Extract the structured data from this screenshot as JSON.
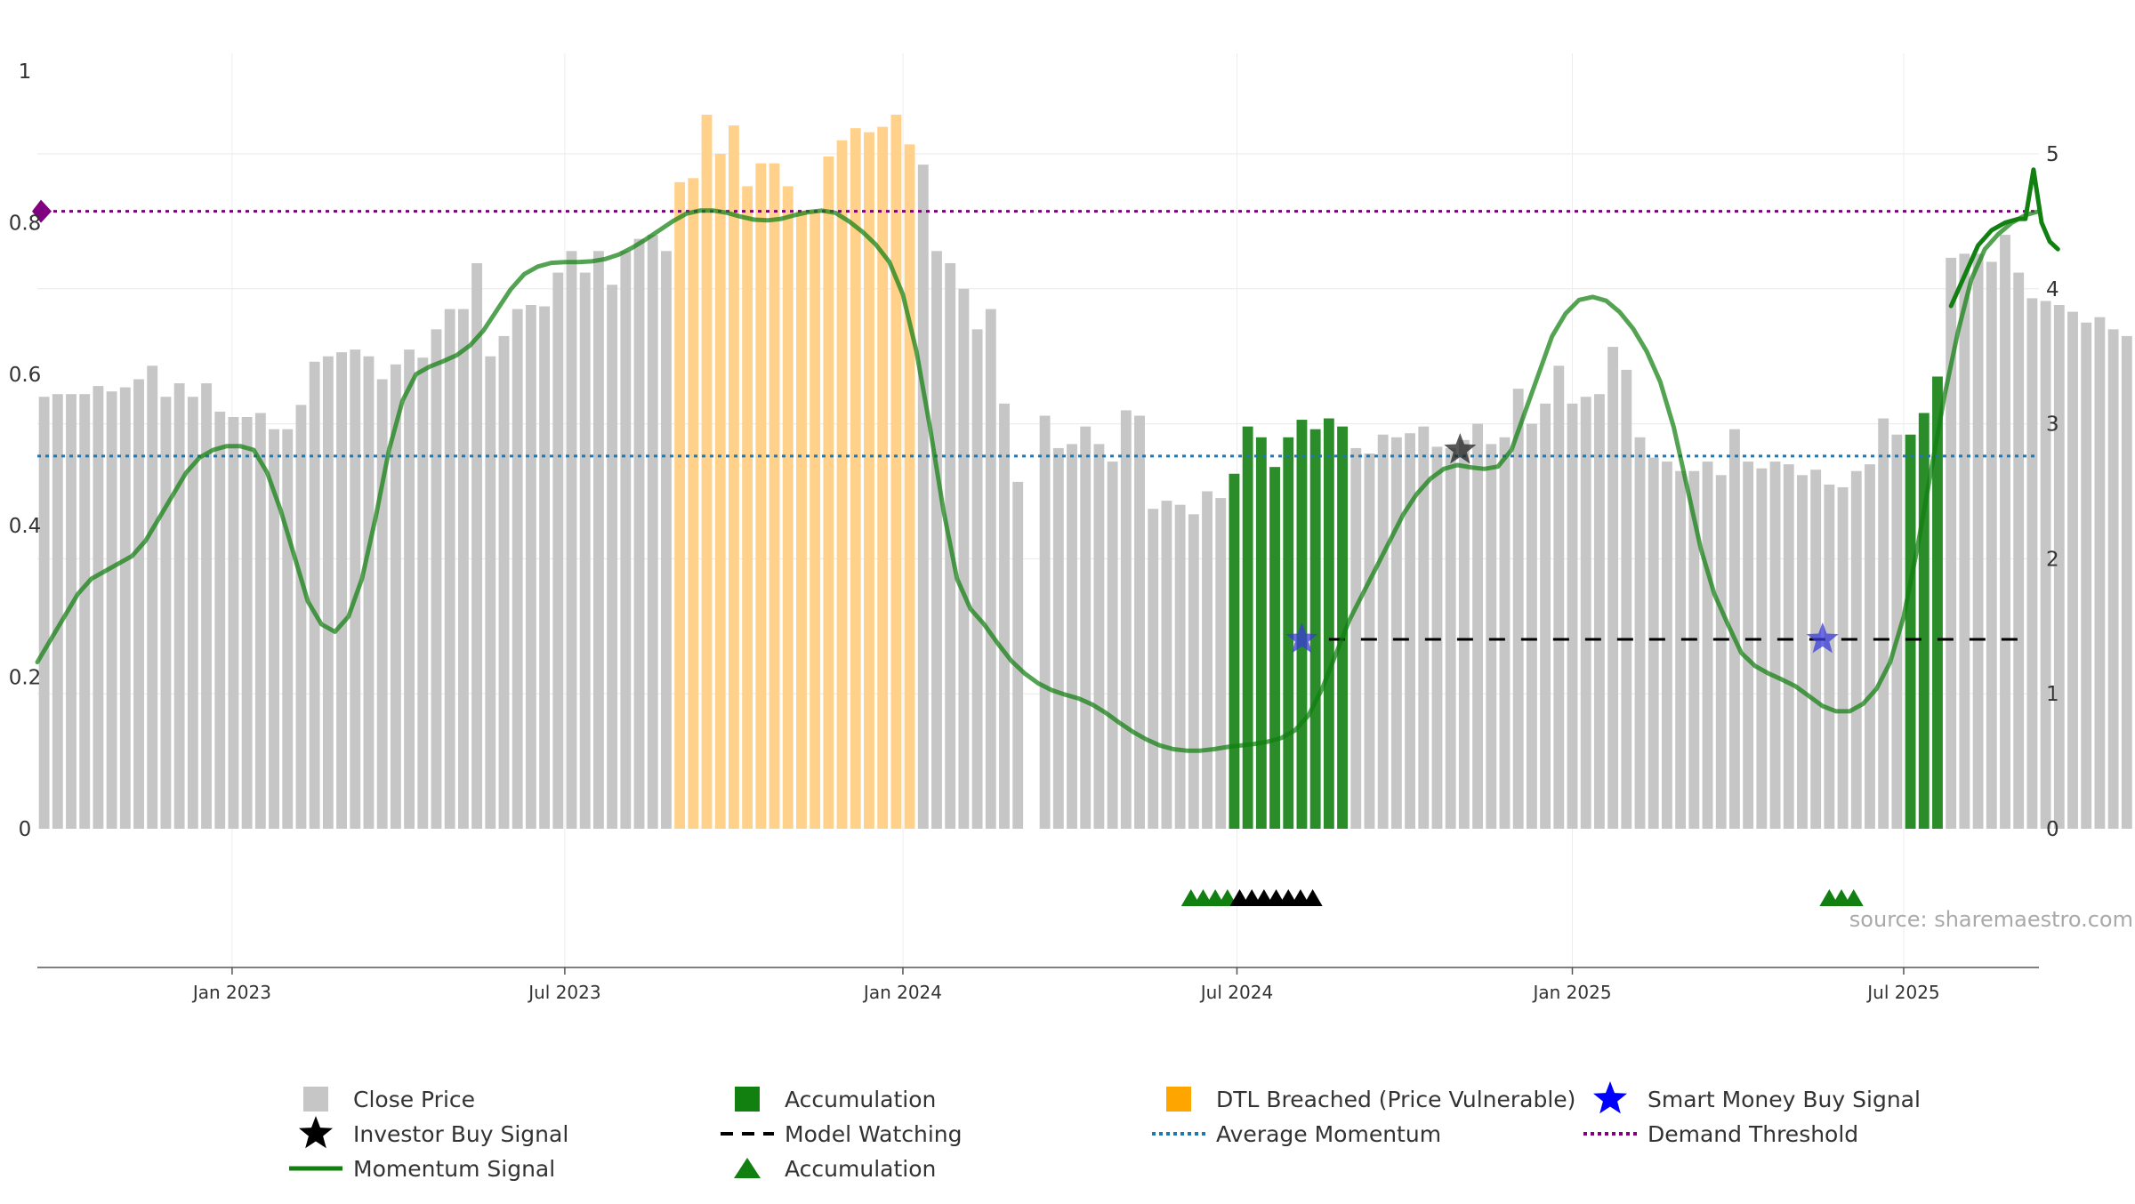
{
  "chart_data": {
    "type": "bar",
    "left_axis": {
      "ticks": [
        0,
        0.2,
        0.4,
        0.6,
        0.8,
        1
      ],
      "tick_labels": [
        "0",
        "0.2",
        "0.4",
        "0.6",
        "0.8",
        "1"
      ],
      "range": [
        0,
        1
      ]
    },
    "right_axis": {
      "ticks": [
        0,
        1,
        2,
        3,
        4,
        5
      ],
      "tick_labels": [
        "0",
        "1",
        "2",
        "3",
        "4",
        "5"
      ],
      "range": [
        0,
        5.1
      ]
    },
    "x_axis": {
      "range": [
        0,
        148
      ],
      "ticks": [
        {
          "x": 14.4,
          "label": "Jan 2023"
        },
        {
          "x": 39.0,
          "label": "Jul 2023"
        },
        {
          "x": 64.0,
          "label": "Jan 2024"
        },
        {
          "x": 88.7,
          "label": "Jul 2024"
        },
        {
          "x": 113.5,
          "label": "Jan 2025"
        },
        {
          "x": 138.0,
          "label": "Jul 2025"
        }
      ]
    },
    "bars": {
      "values": [
        3.2,
        3.22,
        3.22,
        3.22,
        3.28,
        3.24,
        3.27,
        3.33,
        3.43,
        3.2,
        3.3,
        3.2,
        3.3,
        3.09,
        3.05,
        3.05,
        3.08,
        2.96,
        2.96,
        3.14,
        3.46,
        3.5,
        3.53,
        3.55,
        3.5,
        3.33,
        3.44,
        3.55,
        3.49,
        3.7,
        3.85,
        3.85,
        4.19,
        3.5,
        3.65,
        3.85,
        3.88,
        3.87,
        4.12,
        4.28,
        4.12,
        4.28,
        4.03,
        4.28,
        4.37,
        4.4,
        4.28,
        4.79,
        4.82,
        5.29,
        5.0,
        5.21,
        4.76,
        4.93,
        4.93,
        4.76,
        4.58,
        4.58,
        4.98,
        5.1,
        5.19,
        5.16,
        5.2,
        5.29,
        5.07,
        4.92,
        4.28,
        4.19,
        4.0,
        3.7,
        3.85,
        3.15,
        2.57,
        0,
        3.06,
        2.82,
        2.85,
        2.98,
        2.85,
        2.72,
        3.1,
        3.06,
        2.37,
        2.43,
        2.4,
        2.33,
        2.5,
        2.45,
        2.63,
        2.98,
        2.9,
        2.68,
        2.9,
        3.03,
        2.96,
        3.04,
        2.98,
        2.82,
        2.78,
        2.92,
        2.9,
        2.93,
        2.98,
        2.83,
        2.82,
        2.88,
        3.0,
        2.85,
        2.9,
        3.26,
        3.0,
        3.15,
        3.43,
        3.15,
        3.2,
        3.22,
        3.57,
        3.4,
        2.9,
        2.75,
        2.72,
        2.65,
        2.65,
        2.72,
        2.62,
        2.96,
        2.72,
        2.67,
        2.72,
        2.7,
        2.62,
        2.66,
        2.55,
        2.53,
        2.65,
        2.7,
        3.04,
        2.92,
        2.92,
        3.08,
        3.35,
        4.23,
        4.26,
        4.26,
        4.2,
        4.4,
        4.12,
        3.93,
        3.91,
        3.88,
        3.83,
        3.75,
        3.79,
        3.7,
        3.65
      ],
      "colors_by_state": {
        "close": "#c6c6c6",
        "accumulation": "#2a8d2a",
        "dtl": "#ffd18a"
      },
      "dtl_ranges": [
        [
          47,
          65
        ]
      ],
      "accumulation_ranges": [
        [
          88,
          97
        ],
        [
          138,
          141
        ]
      ]
    },
    "momentum_signal": {
      "axis": "left",
      "color": "#118011",
      "points": [
        [
          0,
          0.22
        ],
        [
          1,
          0.25
        ],
        [
          2,
          0.28
        ],
        [
          3,
          0.31
        ],
        [
          4,
          0.33
        ],
        [
          5,
          0.34
        ],
        [
          6,
          0.35
        ],
        [
          7,
          0.36
        ],
        [
          8,
          0.38
        ],
        [
          9,
          0.41
        ],
        [
          10,
          0.44
        ],
        [
          11,
          0.47
        ],
        [
          12,
          0.49
        ],
        [
          13,
          0.5
        ],
        [
          14,
          0.505
        ],
        [
          15,
          0.505
        ],
        [
          16,
          0.5
        ],
        [
          17,
          0.47
        ],
        [
          18,
          0.42
        ],
        [
          19,
          0.36
        ],
        [
          20,
          0.3
        ],
        [
          21,
          0.27
        ],
        [
          22,
          0.26
        ],
        [
          23,
          0.28
        ],
        [
          24,
          0.33
        ],
        [
          25,
          0.41
        ],
        [
          26,
          0.5
        ],
        [
          27,
          0.565
        ],
        [
          28,
          0.6
        ],
        [
          29,
          0.61
        ],
        [
          30,
          0.617
        ],
        [
          31,
          0.625
        ],
        [
          32,
          0.638
        ],
        [
          33,
          0.658
        ],
        [
          34,
          0.685
        ],
        [
          35,
          0.712
        ],
        [
          36,
          0.732
        ],
        [
          37,
          0.742
        ],
        [
          38,
          0.747
        ],
        [
          39,
          0.748
        ],
        [
          40,
          0.748
        ],
        [
          41,
          0.749
        ],
        [
          42,
          0.752
        ],
        [
          43,
          0.758
        ],
        [
          44,
          0.767
        ],
        [
          45,
          0.778
        ],
        [
          46,
          0.79
        ],
        [
          47,
          0.802
        ],
        [
          48,
          0.812
        ],
        [
          49,
          0.816
        ],
        [
          50,
          0.816
        ],
        [
          51,
          0.813
        ],
        [
          52,
          0.808
        ],
        [
          53,
          0.804
        ],
        [
          54,
          0.803
        ],
        [
          55,
          0.805
        ],
        [
          56,
          0.81
        ],
        [
          57,
          0.814
        ],
        [
          58,
          0.816
        ],
        [
          59,
          0.813
        ],
        [
          60,
          0.802
        ],
        [
          61,
          0.788
        ],
        [
          62,
          0.771
        ],
        [
          63,
          0.748
        ],
        [
          64,
          0.705
        ],
        [
          65,
          0.63
        ],
        [
          66,
          0.53
        ],
        [
          67,
          0.42
        ],
        [
          68,
          0.33
        ],
        [
          69,
          0.29
        ],
        [
          70,
          0.27
        ],
        [
          71,
          0.245
        ],
        [
          72,
          0.222
        ],
        [
          73,
          0.205
        ],
        [
          74,
          0.192
        ],
        [
          75,
          0.183
        ],
        [
          76,
          0.177
        ],
        [
          77,
          0.172
        ],
        [
          78,
          0.164
        ],
        [
          79,
          0.153
        ],
        [
          80,
          0.14
        ],
        [
          81,
          0.128
        ],
        [
          82,
          0.118
        ],
        [
          83,
          0.11
        ],
        [
          84,
          0.105
        ],
        [
          85,
          0.103
        ],
        [
          86,
          0.103
        ],
        [
          87,
          0.105
        ],
        [
          88,
          0.108
        ],
        [
          89,
          0.11
        ],
        [
          90,
          0.112
        ],
        [
          91,
          0.115
        ],
        [
          92,
          0.12
        ],
        [
          93,
          0.13
        ],
        [
          94,
          0.15
        ],
        [
          95,
          0.185
        ],
        [
          96,
          0.23
        ],
        [
          97,
          0.275
        ],
        [
          98,
          0.31
        ],
        [
          99,
          0.345
        ],
        [
          100,
          0.38
        ],
        [
          101,
          0.415
        ],
        [
          102,
          0.442
        ],
        [
          103,
          0.462
        ],
        [
          104,
          0.475
        ],
        [
          105,
          0.48
        ],
        [
          106,
          0.477
        ],
        [
          107,
          0.475
        ],
        [
          108,
          0.478
        ],
        [
          109,
          0.5
        ],
        [
          110,
          0.55
        ],
        [
          111,
          0.6
        ],
        [
          112,
          0.65
        ],
        [
          113,
          0.68
        ],
        [
          114,
          0.698
        ],
        [
          115,
          0.702
        ],
        [
          116,
          0.697
        ],
        [
          117,
          0.682
        ],
        [
          118,
          0.66
        ],
        [
          119,
          0.63
        ],
        [
          120,
          0.59
        ],
        [
          121,
          0.53
        ],
        [
          122,
          0.45
        ],
        [
          123,
          0.37
        ],
        [
          124,
          0.31
        ],
        [
          125,
          0.27
        ],
        [
          126,
          0.232
        ],
        [
          127,
          0.215
        ],
        [
          128,
          0.205
        ],
        [
          129,
          0.197
        ],
        [
          130,
          0.188
        ],
        [
          131,
          0.175
        ],
        [
          132,
          0.162
        ],
        [
          133,
          0.155
        ],
        [
          134,
          0.155
        ],
        [
          135,
          0.165
        ],
        [
          136,
          0.185
        ],
        [
          137,
          0.22
        ],
        [
          138,
          0.28
        ],
        [
          139,
          0.37
        ],
        [
          140,
          0.47
        ],
        [
          141,
          0.57
        ],
        [
          142,
          0.655
        ],
        [
          143,
          0.725
        ],
        [
          144,
          0.765
        ],
        [
          145,
          0.785
        ],
        [
          146,
          0.8
        ],
        [
          147,
          0.81
        ],
        [
          148,
          0.815
        ]
      ],
      "end_points": [
        [
          141.5,
          0.69
        ],
        [
          142.5,
          0.73
        ],
        [
          143.5,
          0.77
        ],
        [
          144.5,
          0.79
        ],
        [
          145.5,
          0.8
        ],
        [
          146.5,
          0.805
        ],
        [
          147,
          0.805
        ],
        [
          147.6,
          0.87
        ],
        [
          148.2,
          0.8
        ]
      ],
      "tail": [
        [
          148.2,
          0.8
        ],
        [
          148.8,
          0.775
        ],
        [
          149.4,
          0.765
        ]
      ]
    },
    "average_momentum": {
      "axis": "left",
      "value": 0.492,
      "color": "#1f77b4"
    },
    "demand_threshold": {
      "axis": "left",
      "value": 0.815,
      "color": "#800080"
    },
    "model_watching": {
      "axis": "left",
      "value": 0.25,
      "ranges": [
        [
          95.5,
          147.5
        ]
      ],
      "color": "#000000"
    },
    "smart_money_buy_signals": [
      {
        "x": 93.5,
        "y": 0.25
      },
      {
        "x": 132.0,
        "y": 0.25
      }
    ],
    "investor_buy_signals": [
      {
        "x": 105.2,
        "y": 0.5
      }
    ],
    "accumulation_markers": {
      "green": [
        85.3,
        86.2,
        87.1,
        88.0,
        132.5,
        133.4,
        134.3
      ],
      "black": [
        88.9,
        89.8,
        90.7,
        91.6,
        92.5,
        93.4,
        94.3
      ]
    },
    "watermark": "source: sharemaestro.com",
    "legend": {
      "items": [
        {
          "label": "Close Price",
          "symbol": "gray-square"
        },
        {
          "label": "Accumulation",
          "symbol": "green-square"
        },
        {
          "label": "DTL Breached (Price Vulnerable)",
          "symbol": "orange-square"
        },
        {
          "label": "Smart Money Buy Signal",
          "symbol": "blue-star"
        },
        {
          "label": "Investor Buy Signal",
          "symbol": "black-star"
        },
        {
          "label": "Model Watching",
          "symbol": "black-dash"
        },
        {
          "label": "Average Momentum",
          "symbol": "blue-dots"
        },
        {
          "label": "Demand Threshold",
          "symbol": "purple-dots"
        },
        {
          "label": "Momentum Signal",
          "symbol": "green-line"
        },
        {
          "label": "Accumulation",
          "symbol": "green-triangle"
        }
      ],
      "placement": "bottom"
    }
  }
}
